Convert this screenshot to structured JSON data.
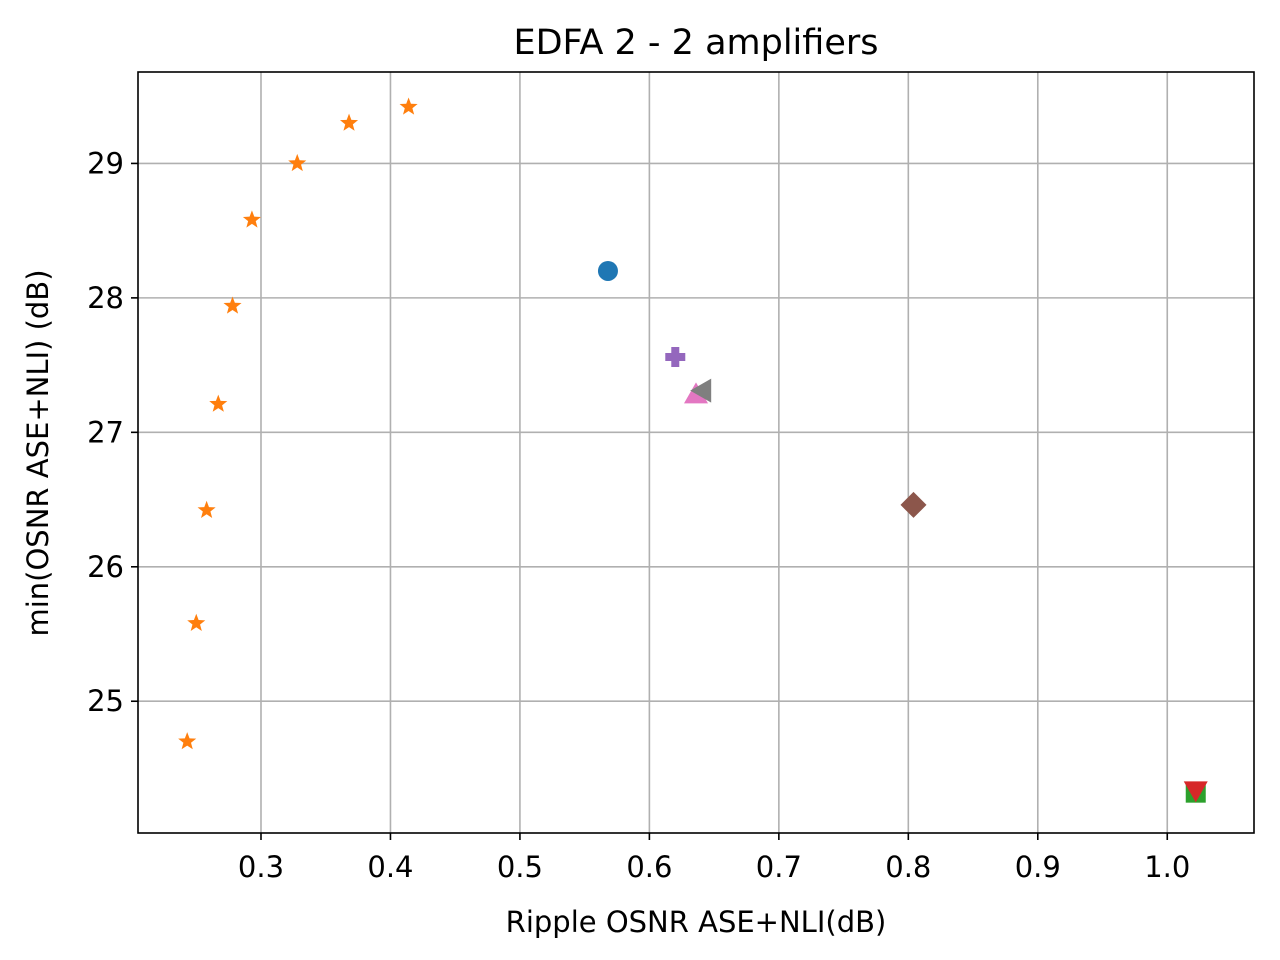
{
  "chart_data": {
    "type": "scatter",
    "title": "EDFA 2 - 2 amplifiers",
    "xlabel": "Ripple OSNR ASE+NLI(dB)",
    "ylabel": "min(OSNR ASE+NLI) (dB)",
    "xlim": [
      0.205,
      1.067
    ],
    "ylim": [
      24.02,
      29.68
    ],
    "xticks": [
      0.3,
      0.4,
      0.5,
      0.6,
      0.7,
      0.8,
      0.9,
      1.0
    ],
    "xtick_labels": [
      "0.3",
      "0.4",
      "0.5",
      "0.6",
      "0.7",
      "0.8",
      "0.9",
      "1.0"
    ],
    "yticks": [
      25,
      26,
      27,
      28,
      29
    ],
    "ytick_labels": [
      "25",
      "26",
      "27",
      "28",
      "29"
    ],
    "grid": true,
    "legend": "none",
    "series": [
      {
        "marker": "circle",
        "color": "#1f77b4",
        "points": [
          [
            0.568,
            28.2
          ]
        ]
      },
      {
        "marker": "star",
        "color": "#ff7f0e",
        "points": [
          [
            0.243,
            24.7
          ],
          [
            0.25,
            25.58
          ],
          [
            0.258,
            26.42
          ],
          [
            0.267,
            27.21
          ],
          [
            0.278,
            27.94
          ],
          [
            0.293,
            28.58
          ],
          [
            0.328,
            29.0
          ],
          [
            0.368,
            29.3
          ],
          [
            0.414,
            29.42
          ]
        ]
      },
      {
        "marker": "square",
        "color": "#2ca02c",
        "points": [
          [
            1.022,
            24.32
          ]
        ]
      },
      {
        "marker": "triangle-down",
        "color": "#d62728",
        "points": [
          [
            1.022,
            24.33
          ]
        ]
      },
      {
        "marker": "plus-filled",
        "color": "#9467bd",
        "points": [
          [
            0.62,
            27.56
          ]
        ]
      },
      {
        "marker": "diamond",
        "color": "#8c564b",
        "points": [
          [
            0.804,
            26.46
          ]
        ]
      },
      {
        "marker": "triangle-up",
        "color": "#e377c2",
        "points": [
          [
            0.636,
            27.29
          ]
        ]
      },
      {
        "marker": "triangle-left",
        "color": "#7f7f7f",
        "points": [
          [
            0.64,
            27.31
          ]
        ]
      }
    ]
  }
}
